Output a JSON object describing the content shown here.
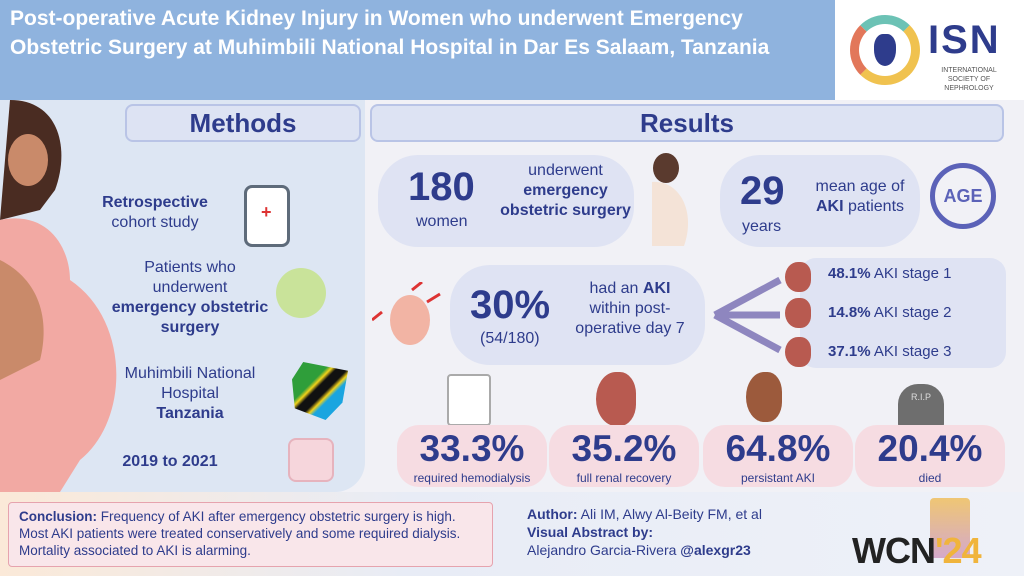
{
  "title": "Post-operative Acute Kidney Injury in Women who underwent Emergency Obstetric Surgery at Muhimbili National Hospital in Dar Es Salaam, Tanzania",
  "logo": {
    "name": "ISN",
    "subtitle": "INTERNATIONAL SOCIETY OF NEPHROLOGY"
  },
  "methods": {
    "header": "Methods",
    "items": [
      {
        "pre": "",
        "bold": "Retrospective",
        "post": "cohort study",
        "icon": "clipboard-icon"
      },
      {
        "pre": "Patients who underwent",
        "bold": "emergency obstetric surgery",
        "post": "",
        "icon": "scalpel-icon"
      },
      {
        "pre": "Muhimbili National Hospital",
        "bold": "Tanzania",
        "post": "",
        "icon": "tanzania-flag-map-icon"
      },
      {
        "pre": "",
        "bold": "2019 to 2021",
        "post": "",
        "icon": "calendar-icon"
      }
    ]
  },
  "results": {
    "header": "Results",
    "women": {
      "value": "180",
      "unit": "women",
      "pre": "underwent",
      "bold": "emergency obstetric surgery"
    },
    "age": {
      "value": "29",
      "unit": "years",
      "pre": "mean age of",
      "bold": "AKI",
      "post": "patients",
      "badge": "AGE"
    },
    "aki": {
      "value": "30%",
      "sub": "(54/180)",
      "pre": "had an",
      "bold": "AKI",
      "post": "within post-operative day 7"
    },
    "stages": [
      {
        "pct": "48.1%",
        "label": "AKI stage 1"
      },
      {
        "pct": "14.8%",
        "label": "AKI stage 2"
      },
      {
        "pct": "37.1%",
        "label": "AKI stage 3"
      }
    ],
    "outcomes": [
      {
        "value": "33.3%",
        "label": "required hemodialysis",
        "icon": "dialysis-machine-icon"
      },
      {
        "value": "35.2%",
        "label": "full renal recovery",
        "icon": "kidney-icon"
      },
      {
        "value": "64.8%",
        "label": "persistant AKI",
        "icon": "kidney-icon"
      },
      {
        "value": "20.4%",
        "label": "died",
        "icon": "tombstone-icon",
        "icon_text": "R.I.P"
      }
    ]
  },
  "conclusion": {
    "label": "Conclusion:",
    "text": "Frequency of AKI after emergency obstetric surgery is high. Most AKI patients were treated conservatively and some required dialysis. Mortality associated to AKI is alarming."
  },
  "author": {
    "label": "Author:",
    "names": "Ali IM, Alwy Al-Beity FM, et al",
    "va_label": "Visual Abstract by:",
    "va_name": "Alejandro Garcia-Rivera",
    "handle": "@alexgr23"
  },
  "event": {
    "name": "WCN",
    "year": "'24"
  },
  "colors": {
    "navy": "#2e3c8c",
    "blue_band": "#8fb3de",
    "pink": "#f6dce2",
    "lavender": "#dfe3f3"
  }
}
